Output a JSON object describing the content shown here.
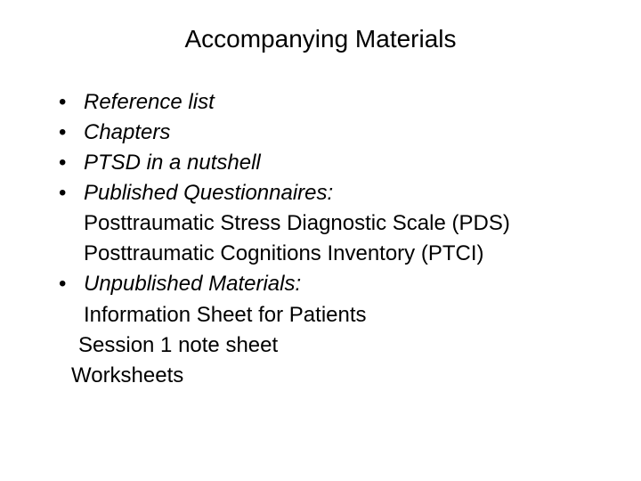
{
  "slide": {
    "title": "Accompanying Materials",
    "background_color": "#ffffff",
    "text_color": "#000000",
    "title_fontsize": 28,
    "body_fontsize": 24,
    "font_family": "Arial",
    "bullet_char": "•",
    "lines": [
      {
        "text": "Reference list",
        "bullet": true,
        "italic": true
      },
      {
        "text": "Chapters",
        "bullet": true,
        "italic": true
      },
      {
        "text": "PTSD in a nutshell",
        "bullet": true,
        "italic": true
      },
      {
        "text": "Published Questionnaires:",
        "bullet": true,
        "italic": true
      },
      {
        "text": "Posttraumatic Stress Diagnostic Scale (PDS)",
        "bullet": false,
        "italic": false
      },
      {
        "text": "Posttraumatic Cognitions Inventory (PTCI)",
        "bullet": false,
        "italic": false
      },
      {
        "text": "Unpublished Materials:",
        "bullet": true,
        "italic": true
      },
      {
        "text": "Information Sheet for Patients",
        "bullet": false,
        "italic": false,
        "nudge": 1
      },
      {
        "text": "Session 1 note sheet",
        "bullet": false,
        "italic": false,
        "nudge": 2
      },
      {
        "text": "Worksheets",
        "bullet": false,
        "italic": false,
        "nudge": 3
      }
    ]
  }
}
